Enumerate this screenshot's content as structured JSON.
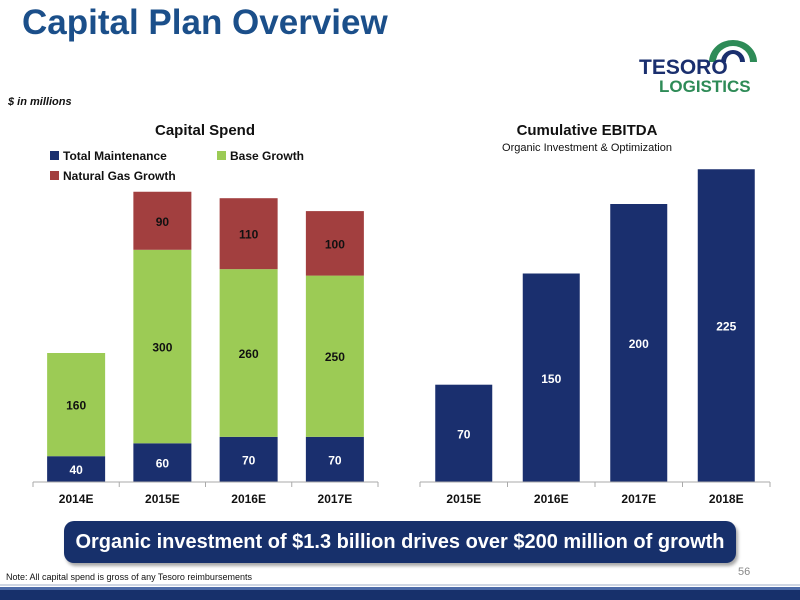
{
  "page": {
    "title": "Capital Plan Overview",
    "units": "$ in millions",
    "banner": "Organic investment of $1.3 billion drives over $200 million of growth",
    "note": "Note: All capital spend is gross of any Tesoro reimbursements",
    "page_number": "56",
    "logo": {
      "line1": "TESORO",
      "line2": "LOGISTICS"
    }
  },
  "colors": {
    "maintenance": "#1a2f6e",
    "base_growth": "#9ccb55",
    "gas_growth": "#a23f3f",
    "ebitda": "#1a2f6e",
    "title": "#1b4f8a"
  },
  "chart_data": [
    {
      "type": "bar",
      "stacked": true,
      "title": "Capital Spend",
      "categories": [
        "2014E",
        "2015E",
        "2016E",
        "2017E"
      ],
      "series": [
        {
          "name": "Total Maintenance",
          "values": [
            40,
            60,
            70,
            70
          ]
        },
        {
          "name": "Base Growth",
          "values": [
            160,
            300,
            260,
            250
          ]
        },
        {
          "name": "Natural Gas Growth",
          "values": [
            0,
            90,
            110,
            100
          ]
        }
      ],
      "legend": "top-left",
      "grid": false
    },
    {
      "type": "bar",
      "title": "Cumulative EBITDA",
      "subtitle": "Organic Investment & Optimization",
      "categories": [
        "2015E",
        "2016E",
        "2017E",
        "2018E"
      ],
      "values": [
        70,
        150,
        200,
        225
      ],
      "grid": false
    }
  ]
}
